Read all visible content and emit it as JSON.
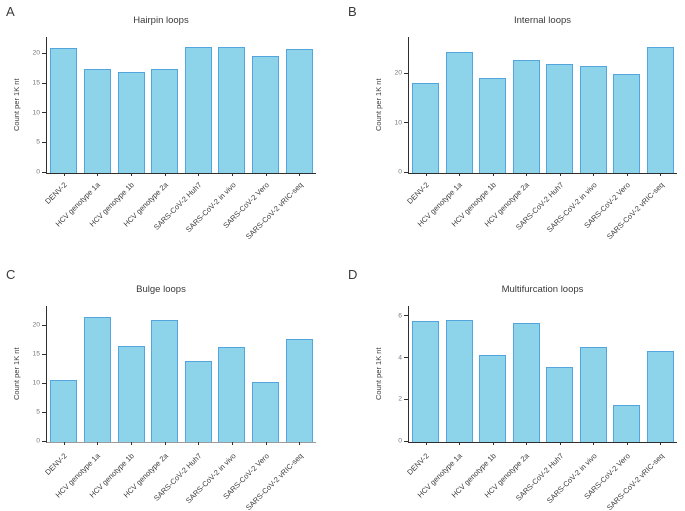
{
  "figure": {
    "background": "#ffffff",
    "bar_fill": "#8DD3EA",
    "bar_border": "#54A4DE",
    "axis_color": "#2f2f2f",
    "tick_label_color": "#7a7a7a",
    "text_color": "#3d3d3d"
  },
  "chart_data": [
    {
      "letter": "A",
      "type": "bar",
      "title": "Hairpin loops",
      "ylabel": "Count per 1K nt",
      "categories": [
        "DENV-2",
        "HCV genotype 1a",
        "HCV genotype 1b",
        "HCV genotype 2a",
        "SARS-CoV-2 Huh7",
        "SARS-CoV-2 in vivo",
        "SARS-CoV-2 Vero",
        "SARS-CoV-2 vRIC-seq"
      ],
      "values": [
        21.0,
        17.5,
        17.0,
        17.4,
        21.2,
        21.2,
        19.7,
        20.8
      ],
      "yticks": [
        0,
        5,
        10,
        15,
        20
      ],
      "ylim": [
        0,
        22.8
      ],
      "grid": false,
      "legend": false,
      "baseline_color": "#2f2f2f"
    },
    {
      "letter": "B",
      "type": "bar",
      "title": "Internal loops",
      "ylabel": "Count per 1K nt",
      "categories": [
        "DENV-2",
        "HCV genotype 1a",
        "HCV genotype 1b",
        "HCV genotype 2a",
        "SARS-CoV-2 Huh7",
        "SARS-CoV-2 in vivo",
        "SARS-CoV-2 Vero",
        "SARS-CoV-2 vRIC-seq"
      ],
      "values": [
        18.1,
        24.3,
        19.1,
        22.8,
        21.9,
        21.6,
        20.0,
        25.3
      ],
      "yticks": [
        0,
        10,
        20
      ],
      "ylim": [
        0,
        27.4
      ],
      "grid": false,
      "legend": false,
      "baseline_color": "#2f2f2f"
    },
    {
      "letter": "C",
      "type": "bar",
      "title": "Bulge loops",
      "ylabel": "Count per 1K nt",
      "categories": [
        "DENV-2",
        "HCV genotype 1a",
        "HCV genotype 1b",
        "HCV genotype 2a",
        "SARS-CoV-2 Huh7",
        "SARS-CoV-2 in vivo",
        "SARS-CoV-2 Vero",
        "SARS-CoV-2 vRIC-seq"
      ],
      "values": [
        10.6,
        21.5,
        16.5,
        21.0,
        14.0,
        16.3,
        10.4,
        17.7
      ],
      "yticks": [
        0,
        5,
        10,
        15,
        20
      ],
      "ylim": [
        0,
        23.4
      ],
      "grid": false,
      "legend": false,
      "baseline_color": "#9b9b9b"
    },
    {
      "letter": "D",
      "type": "bar",
      "title": "Multifurcation loops",
      "ylabel": "Count per 1K nt",
      "categories": [
        "DENV-2",
        "HCV genotype 1a",
        "HCV genotype 1b",
        "HCV genotype 2a",
        "SARS-CoV-2 Huh7",
        "SARS-CoV-2 in vivo",
        "SARS-CoV-2 Vero",
        "SARS-CoV-2 vRIC-seq"
      ],
      "values": [
        5.78,
        5.85,
        4.15,
        5.68,
        3.6,
        4.55,
        1.78,
        4.33
      ],
      "yticks": [
        0,
        2,
        4,
        6
      ],
      "ylim": [
        0,
        6.5
      ],
      "grid": false,
      "legend": false,
      "baseline_color": "#2f2f2f"
    }
  ]
}
